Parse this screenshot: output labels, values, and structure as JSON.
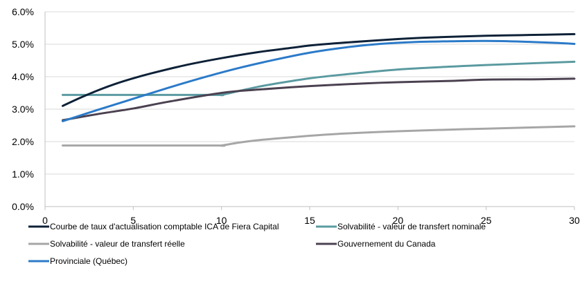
{
  "chart_data": {
    "type": "line",
    "title": "",
    "xlabel": "",
    "ylabel": "",
    "xlim": [
      0,
      30
    ],
    "ylim": [
      0,
      6
    ],
    "x_ticks": [
      "0",
      "5",
      "10",
      "15",
      "20",
      "25",
      "30"
    ],
    "y_ticks": [
      "0.0%",
      "1.0%",
      "2.0%",
      "3.0%",
      "4.0%",
      "5.0%",
      "6.0%"
    ],
    "grid": "horizontal",
    "legend_position": "bottom",
    "series": [
      {
        "name": "Courbe de taux d'actualisation comptable ICA de Fiera Capital",
        "color": "#0d2137",
        "x": [
          1,
          2,
          3,
          4,
          5,
          6,
          8,
          10,
          12,
          14,
          15,
          17,
          20,
          22,
          25,
          27,
          30
        ],
        "y": [
          3.1,
          3.35,
          3.58,
          3.78,
          3.95,
          4.1,
          4.36,
          4.57,
          4.75,
          4.89,
          4.96,
          5.05,
          5.16,
          5.21,
          5.26,
          5.28,
          5.31
        ]
      },
      {
        "name": "Solvabilité - valeur de transfert nominale",
        "color": "#5a9aa0",
        "x": [
          1,
          5,
          9.7,
          10,
          11,
          12,
          13,
          15,
          17,
          20,
          23,
          25,
          30
        ],
        "y": [
          3.44,
          3.44,
          3.44,
          3.44,
          3.56,
          3.68,
          3.78,
          3.95,
          4.07,
          4.22,
          4.31,
          4.36,
          4.46
        ]
      },
      {
        "name": "Solvabilité - valeur de transfert réelle",
        "color": "#a6a6a6",
        "x": [
          1,
          5,
          9.8,
          10,
          11,
          12,
          13,
          15,
          17,
          20,
          23,
          25,
          30
        ],
        "y": [
          1.88,
          1.88,
          1.88,
          1.88,
          1.97,
          2.04,
          2.09,
          2.18,
          2.25,
          2.32,
          2.37,
          2.4,
          2.47
        ]
      },
      {
        "name": "Gouvernement du Canada",
        "color": "#4b4150",
        "x": [
          1,
          3,
          5,
          7,
          10,
          12,
          15,
          18,
          20,
          23,
          25,
          28,
          30
        ],
        "y": [
          2.66,
          2.85,
          3.02,
          3.23,
          3.5,
          3.6,
          3.71,
          3.79,
          3.83,
          3.87,
          3.91,
          3.92,
          3.94
        ]
      },
      {
        "name": "Provinciale (Québec)",
        "color": "#2b7ac8",
        "x": [
          1,
          3,
          5,
          7,
          9,
          11,
          13,
          15,
          17,
          19,
          21,
          23,
          25,
          27,
          29,
          30
        ],
        "y": [
          2.63,
          2.98,
          3.32,
          3.66,
          3.98,
          4.27,
          4.52,
          4.74,
          4.9,
          5.01,
          5.07,
          5.09,
          5.1,
          5.08,
          5.04,
          5.01
        ]
      }
    ]
  }
}
